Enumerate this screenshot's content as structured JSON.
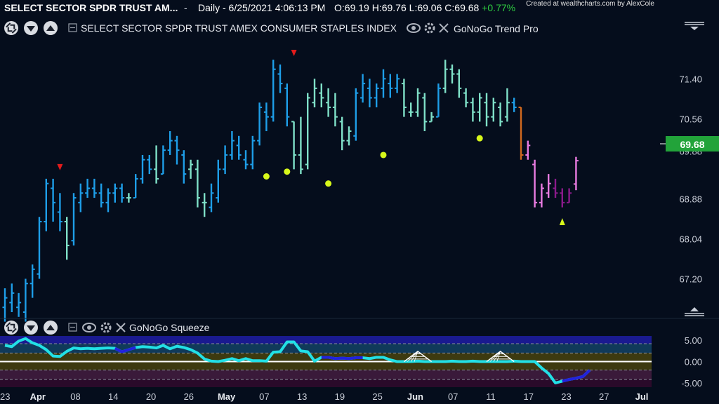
{
  "header": {
    "title": "SELECT SECTOR SPDR TRUST AM...",
    "separator": "-",
    "interval": "Daily - 6/25/2021 4:06:13 PM",
    "ohlc": {
      "open_label": "O:",
      "open": "69.19",
      "high_label": "H:",
      "high": "69.76",
      "low_label": "L:",
      "low": "69.06",
      "close_label": "C:",
      "close": "69.68",
      "change": "+0.77%"
    },
    "credit": "Created at wealthcharts.com by AlexCole"
  },
  "price_pane": {
    "title": "SELECT SECTOR SPDR TRUST AMEX CONSUMER STAPLES INDEX",
    "indicator": "GoNoGo Trend Pro",
    "last_price_label": "69.68",
    "last_price_color": "#22a33a",
    "controls": [
      "collapse-icon",
      "chevron-down-icon",
      "chevron-up-icon",
      "minus-box-icon",
      "eye-icon",
      "gear-icon",
      "close-icon"
    ]
  },
  "squeeze_pane": {
    "title": "GoNoGo Squeeze",
    "controls": [
      "collapse-icon",
      "chevron-down-icon",
      "chevron-up-icon",
      "minus-box-icon",
      "eye-icon",
      "gear-icon",
      "close-icon"
    ]
  },
  "colors": {
    "strong_go": "#1e9ee8",
    "weak_go": "#7fe0c8",
    "go_fading": "#a8e6cf",
    "nogo_orange": "#d2691e",
    "nogo_pink": "#e87be0",
    "strong_nogo": "#8b1a8b",
    "marker_red": "#e21b1b",
    "marker_yellow": "#d7f71a",
    "squeeze_cyan": "#22e0e6",
    "squeeze_blue": "#2222dd",
    "background": "#050d1c"
  },
  "chart_data": [
    {
      "type": "ohlc",
      "y_ticks": [
        "71.40",
        "70.56",
        "69.88",
        "68.88",
        "68.04",
        "67.20"
      ],
      "ylim": [
        66.5,
        72.2
      ],
      "x_ticks": [
        {
          "label": "23",
          "bold": false
        },
        {
          "label": "Apr",
          "bold": true
        },
        {
          "label": "08",
          "bold": false
        },
        {
          "label": "14",
          "bold": false
        },
        {
          "label": "20",
          "bold": false
        },
        {
          "label": "26",
          "bold": false
        },
        {
          "label": "May",
          "bold": true
        },
        {
          "label": "07",
          "bold": false
        },
        {
          "label": "13",
          "bold": false
        },
        {
          "label": "19",
          "bold": false
        },
        {
          "label": "25",
          "bold": false
        },
        {
          "label": "Jun",
          "bold": true
        },
        {
          "label": "07",
          "bold": false
        },
        {
          "label": "11",
          "bold": false
        },
        {
          "label": "17",
          "bold": false
        },
        {
          "label": "23",
          "bold": false
        },
        {
          "label": "27",
          "bold": false
        },
        {
          "label": "Jul",
          "bold": true
        }
      ],
      "bars": [
        {
          "o": 66.6,
          "h": 67.0,
          "l": 66.3,
          "c": 66.8,
          "t": "strong_go"
        },
        {
          "o": 66.7,
          "h": 67.1,
          "l": 66.5,
          "c": 66.9,
          "t": "strong_go"
        },
        {
          "o": 66.6,
          "h": 66.9,
          "l": 66.4,
          "c": 66.7,
          "t": "strong_go"
        },
        {
          "o": 66.5,
          "h": 67.2,
          "l": 66.3,
          "c": 67.1,
          "t": "strong_go"
        },
        {
          "o": 67.1,
          "h": 67.5,
          "l": 66.8,
          "c": 67.4,
          "t": "strong_go"
        },
        {
          "o": 67.3,
          "h": 68.5,
          "l": 67.2,
          "c": 68.4,
          "t": "strong_go"
        },
        {
          "o": 68.4,
          "h": 69.3,
          "l": 68.2,
          "c": 69.2,
          "t": "strong_go"
        },
        {
          "o": 69.1,
          "h": 69.3,
          "l": 68.4,
          "c": 68.8,
          "t": "strong_go"
        },
        {
          "o": 68.6,
          "h": 69.0,
          "l": 68.2,
          "c": 68.4,
          "t": "strong_go"
        },
        {
          "o": 68.4,
          "h": 68.5,
          "l": 67.6,
          "c": 67.9,
          "t": "weak_go"
        },
        {
          "o": 68.0,
          "h": 69.0,
          "l": 67.9,
          "c": 68.9,
          "t": "strong_go"
        },
        {
          "o": 68.8,
          "h": 69.2,
          "l": 68.6,
          "c": 69.0,
          "t": "strong_go"
        },
        {
          "o": 69.0,
          "h": 69.3,
          "l": 68.9,
          "c": 69.1,
          "t": "strong_go"
        },
        {
          "o": 69.1,
          "h": 69.3,
          "l": 68.9,
          "c": 69.0,
          "t": "strong_go"
        },
        {
          "o": 69.0,
          "h": 69.2,
          "l": 68.7,
          "c": 68.8,
          "t": "strong_go"
        },
        {
          "o": 68.8,
          "h": 69.1,
          "l": 68.6,
          "c": 69.0,
          "t": "strong_go"
        },
        {
          "o": 69.0,
          "h": 69.2,
          "l": 68.8,
          "c": 69.1,
          "t": "strong_go"
        },
        {
          "o": 69.1,
          "h": 69.2,
          "l": 68.8,
          "c": 68.9,
          "t": "strong_go"
        },
        {
          "o": 68.9,
          "h": 69.0,
          "l": 68.8,
          "c": 68.9,
          "t": "weak_go"
        },
        {
          "o": 68.9,
          "h": 69.4,
          "l": 68.9,
          "c": 69.3,
          "t": "strong_go"
        },
        {
          "o": 69.3,
          "h": 69.8,
          "l": 69.2,
          "c": 69.7,
          "t": "strong_go"
        },
        {
          "o": 69.7,
          "h": 69.8,
          "l": 69.4,
          "c": 69.5,
          "t": "strong_go"
        },
        {
          "o": 69.5,
          "h": 70.0,
          "l": 69.2,
          "c": 69.3,
          "t": "weak_go"
        },
        {
          "o": 69.4,
          "h": 70.0,
          "l": 69.4,
          "c": 69.9,
          "t": "strong_go"
        },
        {
          "o": 69.9,
          "h": 70.3,
          "l": 69.8,
          "c": 70.1,
          "t": "strong_go"
        },
        {
          "o": 70.1,
          "h": 70.2,
          "l": 69.6,
          "c": 69.9,
          "t": "strong_go"
        },
        {
          "o": 69.8,
          "h": 69.9,
          "l": 69.2,
          "c": 69.4,
          "t": "strong_go"
        },
        {
          "o": 69.5,
          "h": 69.7,
          "l": 69.3,
          "c": 69.6,
          "t": "weak_go"
        },
        {
          "o": 69.5,
          "h": 69.7,
          "l": 68.7,
          "c": 68.9,
          "t": "weak_go"
        },
        {
          "o": 68.8,
          "h": 69.0,
          "l": 68.5,
          "c": 68.8,
          "t": "weak_go"
        },
        {
          "o": 68.7,
          "h": 69.2,
          "l": 68.6,
          "c": 69.0,
          "t": "strong_go"
        },
        {
          "o": 68.9,
          "h": 69.7,
          "l": 68.8,
          "c": 69.5,
          "t": "strong_go"
        },
        {
          "o": 69.5,
          "h": 70.0,
          "l": 69.4,
          "c": 69.8,
          "t": "strong_go"
        },
        {
          "o": 69.8,
          "h": 70.3,
          "l": 69.7,
          "c": 70.1,
          "t": "strong_go"
        },
        {
          "o": 70.0,
          "h": 70.2,
          "l": 69.7,
          "c": 69.8,
          "t": "strong_go"
        },
        {
          "o": 69.7,
          "h": 69.9,
          "l": 69.5,
          "c": 69.6,
          "t": "strong_go"
        },
        {
          "o": 69.6,
          "h": 70.2,
          "l": 69.5,
          "c": 70.1,
          "t": "strong_go"
        },
        {
          "o": 70.1,
          "h": 70.9,
          "l": 70.0,
          "c": 70.8,
          "t": "strong_go"
        },
        {
          "o": 70.7,
          "h": 70.9,
          "l": 70.3,
          "c": 70.6,
          "t": "strong_go"
        },
        {
          "o": 70.6,
          "h": 71.8,
          "l": 70.5,
          "c": 71.6,
          "t": "strong_go"
        },
        {
          "o": 71.5,
          "h": 71.7,
          "l": 71.1,
          "c": 71.3,
          "t": "strong_go"
        },
        {
          "o": 71.2,
          "h": 71.3,
          "l": 70.4,
          "c": 70.6,
          "t": "strong_go"
        },
        {
          "o": 70.5,
          "h": 70.5,
          "l": 69.5,
          "c": 69.8,
          "t": "weak_go"
        },
        {
          "o": 69.8,
          "h": 70.6,
          "l": 69.4,
          "c": 69.5,
          "t": "weak_go"
        },
        {
          "o": 69.6,
          "h": 71.1,
          "l": 69.5,
          "c": 71.0,
          "t": "weak_go"
        },
        {
          "o": 70.9,
          "h": 71.4,
          "l": 70.8,
          "c": 71.2,
          "t": "weak_go"
        },
        {
          "o": 71.1,
          "h": 71.3,
          "l": 70.8,
          "c": 71.0,
          "t": "weak_go"
        },
        {
          "o": 70.9,
          "h": 71.2,
          "l": 70.6,
          "c": 70.8,
          "t": "weak_go"
        },
        {
          "o": 70.8,
          "h": 71.1,
          "l": 70.4,
          "c": 70.6,
          "t": "weak_go"
        },
        {
          "o": 70.5,
          "h": 70.6,
          "l": 69.9,
          "c": 70.1,
          "t": "weak_go"
        },
        {
          "o": 70.1,
          "h": 70.4,
          "l": 70.0,
          "c": 70.3,
          "t": "weak_go"
        },
        {
          "o": 70.2,
          "h": 71.2,
          "l": 70.1,
          "c": 71.1,
          "t": "strong_go"
        },
        {
          "o": 71.0,
          "h": 71.5,
          "l": 70.9,
          "c": 71.3,
          "t": "strong_go"
        },
        {
          "o": 71.2,
          "h": 71.4,
          "l": 70.8,
          "c": 71.0,
          "t": "strong_go"
        },
        {
          "o": 71.0,
          "h": 71.3,
          "l": 70.8,
          "c": 71.2,
          "t": "strong_go"
        },
        {
          "o": 71.2,
          "h": 71.6,
          "l": 71.0,
          "c": 71.4,
          "t": "strong_go"
        },
        {
          "o": 71.3,
          "h": 71.5,
          "l": 71.0,
          "c": 71.2,
          "t": "strong_go"
        },
        {
          "o": 71.2,
          "h": 71.5,
          "l": 71.1,
          "c": 71.4,
          "t": "strong_go"
        },
        {
          "o": 71.3,
          "h": 71.4,
          "l": 70.6,
          "c": 70.8,
          "t": "weak_go"
        },
        {
          "o": 70.7,
          "h": 70.9,
          "l": 70.6,
          "c": 70.7,
          "t": "weak_go"
        },
        {
          "o": 70.7,
          "h": 71.2,
          "l": 70.6,
          "c": 71.1,
          "t": "weak_go"
        },
        {
          "o": 71.0,
          "h": 71.1,
          "l": 70.3,
          "c": 70.5,
          "t": "weak_go"
        },
        {
          "o": 70.5,
          "h": 70.7,
          "l": 70.5,
          "c": 70.6,
          "t": "weak_go"
        },
        {
          "o": 70.6,
          "h": 71.3,
          "l": 70.6,
          "c": 71.2,
          "t": "strong_go"
        },
        {
          "o": 71.2,
          "h": 71.8,
          "l": 71.1,
          "c": 71.6,
          "t": "weak_go"
        },
        {
          "o": 71.6,
          "h": 71.7,
          "l": 71.3,
          "c": 71.5,
          "t": "weak_go"
        },
        {
          "o": 71.5,
          "h": 71.6,
          "l": 71.0,
          "c": 71.2,
          "t": "weak_go"
        },
        {
          "o": 71.1,
          "h": 71.2,
          "l": 70.8,
          "c": 70.9,
          "t": "weak_go"
        },
        {
          "o": 70.9,
          "h": 71.0,
          "l": 70.5,
          "c": 70.7,
          "t": "weak_go"
        },
        {
          "o": 70.7,
          "h": 71.1,
          "l": 70.5,
          "c": 71.0,
          "t": "weak_go"
        },
        {
          "o": 70.9,
          "h": 71.1,
          "l": 70.4,
          "c": 70.6,
          "t": "weak_go"
        },
        {
          "o": 70.6,
          "h": 71.0,
          "l": 70.5,
          "c": 70.9,
          "t": "weak_go"
        },
        {
          "o": 70.8,
          "h": 70.9,
          "l": 70.4,
          "c": 70.5,
          "t": "weak_go"
        },
        {
          "o": 70.6,
          "h": 71.2,
          "l": 70.5,
          "c": 70.9,
          "t": "weak_go"
        },
        {
          "o": 70.9,
          "h": 71.0,
          "l": 70.7,
          "c": 70.8,
          "t": "strong_go"
        },
        {
          "o": 70.8,
          "h": 70.8,
          "l": 69.7,
          "c": 69.8,
          "t": "nogo_orange"
        },
        {
          "o": 69.8,
          "h": 70.1,
          "l": 69.7,
          "c": 70.0,
          "t": "nogo_pink"
        },
        {
          "o": 69.6,
          "h": 69.7,
          "l": 68.7,
          "c": 68.8,
          "t": "nogo_pink"
        },
        {
          "o": 68.8,
          "h": 69.2,
          "l": 68.7,
          "c": 69.1,
          "t": "nogo_pink"
        },
        {
          "o": 69.0,
          "h": 69.4,
          "l": 68.9,
          "c": 69.2,
          "t": "nogo_pink"
        },
        {
          "o": 69.1,
          "h": 69.3,
          "l": 68.9,
          "c": 69.0,
          "t": "strong_nogo"
        },
        {
          "o": 69.0,
          "h": 69.1,
          "l": 68.7,
          "c": 68.8,
          "t": "strong_nogo"
        },
        {
          "o": 68.8,
          "h": 69.1,
          "l": 68.8,
          "c": 69.0,
          "t": "strong_nogo"
        },
        {
          "o": 69.19,
          "h": 69.76,
          "l": 69.06,
          "c": 69.68,
          "t": "nogo_pink"
        }
      ],
      "markers": [
        {
          "bar": 8,
          "value": 69.55,
          "shape": "triangle-down",
          "color": "marker_red"
        },
        {
          "bar": 42,
          "value": 71.95,
          "shape": "triangle-down",
          "color": "marker_red"
        },
        {
          "bar": 38,
          "value": 69.35,
          "shape": "dot",
          "color": "marker_yellow"
        },
        {
          "bar": 41,
          "value": 69.45,
          "shape": "dot",
          "color": "marker_yellow"
        },
        {
          "bar": 47,
          "value": 69.2,
          "shape": "dot",
          "color": "marker_yellow"
        },
        {
          "bar": 55,
          "value": 69.8,
          "shape": "dot",
          "color": "marker_yellow"
        },
        {
          "bar": 69,
          "value": 70.15,
          "shape": "dot",
          "color": "marker_yellow"
        },
        {
          "bar": 81,
          "value": 68.4,
          "shape": "triangle-up",
          "color": "marker_yellow"
        }
      ]
    },
    {
      "type": "area",
      "y_ticks": [
        "5.00",
        "0.00",
        "-5.00"
      ],
      "ylim": [
        -6,
        6.5
      ],
      "bands": [
        {
          "from": 4.2,
          "to": 6.0,
          "color": "#1a1a90"
        },
        {
          "from": 2.0,
          "to": 4.2,
          "color": "#103a5a"
        },
        {
          "from": -2.0,
          "to": 2.0,
          "color": "#3d3a10"
        },
        {
          "from": -4.2,
          "to": -2.0,
          "color": "#3a1a3a"
        },
        {
          "from": -6.0,
          "to": -4.2,
          "color": "#2a0a2a"
        }
      ],
      "squeeze_line": [
        3.8,
        3.5,
        4.8,
        5.4,
        4.4,
        3.8,
        2.8,
        1.3,
        1.2,
        2.4,
        3.2,
        3.0,
        3.1,
        3.0,
        3.1,
        3.2,
        3.1,
        2.3,
        2.8,
        3.3,
        3.5,
        3.4,
        3.2,
        3.8,
        3.0,
        3.6,
        3.3,
        2.8,
        2.0,
        0.6,
        0.1,
        0.0,
        0.3,
        0.7,
        0.2,
        0.7,
        0.2,
        0.2,
        0.1,
        2.2,
        2.3,
        4.6,
        4.6,
        2.5,
        2.3,
        0.1,
        1.0,
        1.0,
        0.7,
        0.8,
        0.7,
        0.9,
        0.9,
        0.7,
        1.0,
        1.0,
        0.4,
        0.0,
        0.0,
        0.0,
        0.1,
        0.0,
        0.0,
        0.0,
        0.0,
        0.1,
        0.0,
        0.0,
        0.1,
        0.0,
        0.0,
        0.0,
        0.0,
        0.0,
        0.1,
        0.0,
        0.0,
        0.0,
        -1.5,
        -2.8,
        -5.0,
        -4.6,
        -4.2,
        -3.9,
        -3.5,
        -2.0
      ],
      "squeeze_segments_blue": [
        [
          4,
          4
        ],
        [
          16,
          19
        ],
        [
          46,
          52
        ],
        [
          81,
          85
        ]
      ]
    }
  ]
}
